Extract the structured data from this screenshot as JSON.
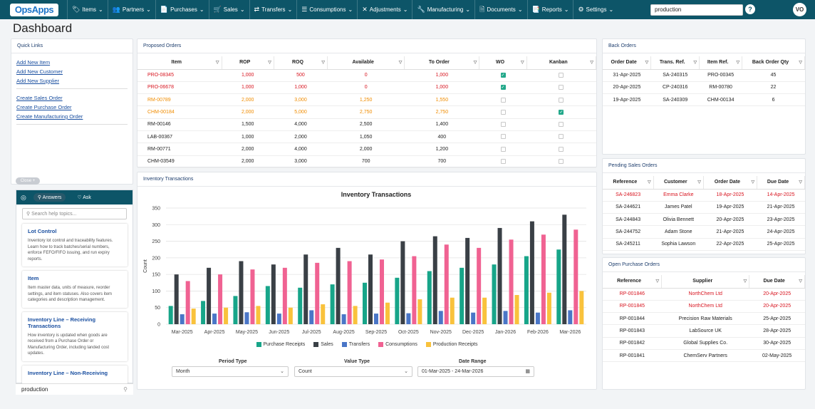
{
  "nav": {
    "logo": "OpsApps",
    "items": [
      {
        "label": "Items",
        "icon": "tag-icon"
      },
      {
        "label": "Partners",
        "icon": "people-icon"
      },
      {
        "label": "Purchases",
        "icon": "document-icon"
      },
      {
        "label": "Sales",
        "icon": "cart-icon"
      },
      {
        "label": "Transfers",
        "icon": "transfer-icon"
      },
      {
        "label": "Consumptions",
        "icon": "list-icon"
      },
      {
        "label": "Adjustments",
        "icon": "cross-arrows-icon"
      },
      {
        "label": "Manufacturing",
        "icon": "wrench-icon"
      },
      {
        "label": "Documents",
        "icon": "file-icon"
      },
      {
        "label": "Reports",
        "icon": "report-icon"
      },
      {
        "label": "Settings",
        "icon": "gear-icon"
      }
    ],
    "search_value": "production",
    "help": "?",
    "avatar": "VO"
  },
  "page_title": "Dashboard",
  "quick_links": {
    "title": "Quick Links",
    "group1": [
      "Add New Item",
      "Add New Customer",
      "Add New Supplier"
    ],
    "group2": [
      "Create Sales Order",
      "Create Purchase Order",
      "Create Manufacturing Order"
    ]
  },
  "close_label": "Close",
  "help": {
    "tab_answers": "Answers",
    "tab_ask": "Ask",
    "search_placeholder": "Search help topics...",
    "cards": [
      {
        "title": "Lot Control",
        "desc": "Inventory lot control and traceability features. Learn how to track batches/serial numbers, enforce FEFO/FIFO issuing, and run expiry reports."
      },
      {
        "title": "Item",
        "desc": "Item master data, units of measure, reorder settings, and item statuses. Also covers item categories and description management."
      },
      {
        "title": "Inventory Line – Receiving Transactions",
        "desc": "How inventory is updated when goods are received from a Purchase Order or Manufacturing Order, including landed cost updates."
      },
      {
        "title": "Inventory Line – Non-Receiving",
        "desc": ""
      }
    ],
    "bottom_query": "production"
  },
  "proposed_orders": {
    "title": "Proposed Orders",
    "headers": [
      "Item",
      "ROP",
      "ROQ",
      "Available",
      "To Order",
      "WO",
      "Kanban"
    ],
    "rows": [
      {
        "item": "PRO-08345",
        "rop": "1,000",
        "roq": "500",
        "available": "0",
        "to_order": "1,000",
        "wo": true,
        "kanban": false,
        "color": "red"
      },
      {
        "item": "PRO-06678",
        "rop": "1,000",
        "roq": "1,000",
        "available": "0",
        "to_order": "1,000",
        "wo": true,
        "kanban": false,
        "color": "red"
      },
      {
        "item": "RM-00789",
        "rop": "2,000",
        "roq": "3,000",
        "available": "1,250",
        "to_order": "1,550",
        "wo": false,
        "kanban": false,
        "color": "orange"
      },
      {
        "item": "CHM-00184",
        "rop": "2,000",
        "roq": "5,000",
        "available": "2,750",
        "to_order": "2,750",
        "wo": false,
        "kanban": true,
        "color": "orange"
      },
      {
        "item": "RM-00146",
        "rop": "1,500",
        "roq": "4,000",
        "available": "2,500",
        "to_order": "1,400",
        "wo": false,
        "kanban": false,
        "color": ""
      },
      {
        "item": "LAB-00367",
        "rop": "1,000",
        "roq": "2,000",
        "available": "1,050",
        "to_order": "400",
        "wo": false,
        "kanban": false,
        "color": ""
      },
      {
        "item": "RM-00771",
        "rop": "2,000",
        "roq": "4,000",
        "available": "2,000",
        "to_order": "1,200",
        "wo": false,
        "kanban": false,
        "color": ""
      },
      {
        "item": "CHM-03549",
        "rop": "2,000",
        "roq": "3,000",
        "available": "700",
        "to_order": "700",
        "wo": false,
        "kanban": false,
        "color": ""
      }
    ]
  },
  "back_orders": {
    "title": "Back Orders",
    "headers": [
      "Order Date",
      "Trans. Ref.",
      "Item Ref.",
      "Back Order Qty"
    ],
    "rows": [
      [
        "31-Apr-2025",
        "SA-240315",
        "PRO-00345",
        "45"
      ],
      [
        "20-Apr-2025",
        "CP-240316",
        "RM-00780",
        "22"
      ],
      [
        "19-Apr-2025",
        "SA-240309",
        "CHM-00134",
        "6"
      ]
    ]
  },
  "pending_sales": {
    "title": "Pending Sales Orders",
    "headers": [
      "Reference",
      "Customer",
      "Order Date",
      "Due Date"
    ],
    "rows": [
      {
        "cells": [
          "SA-246823",
          "Emma Clarke",
          "18-Apr-2025",
          "14-Apr-2025"
        ],
        "color": "red"
      },
      {
        "cells": [
          "SA-244621",
          "James Patel",
          "19-Apr-2025",
          "21-Apr-2025"
        ],
        "color": ""
      },
      {
        "cells": [
          "SA-244843",
          "Olivia Bennett",
          "20-Apr-2025",
          "23-Apr-2025"
        ],
        "color": ""
      },
      {
        "cells": [
          "SA-244752",
          "Adam Stone",
          "21-Apr-2025",
          "24-Apr-2025"
        ],
        "color": ""
      },
      {
        "cells": [
          "SA-245211",
          "Sophia Lawson",
          "22-Apr-2025",
          "25-Apr-2025"
        ],
        "color": ""
      }
    ]
  },
  "open_purchase": {
    "title": "Open Purchase Orders",
    "headers": [
      "Reference",
      "Supplier",
      "Due Date"
    ],
    "rows": [
      {
        "cells": [
          "RP-001846",
          "NorthChem Ltd",
          "20-Apr-2025"
        ],
        "color": "red"
      },
      {
        "cells": [
          "RP-001845",
          "NorthChem Ltd",
          "20-Apr-2025"
        ],
        "color": "red"
      },
      {
        "cells": [
          "RP-001844",
          "Precision Raw Materials",
          "25-Apr-2025"
        ],
        "color": ""
      },
      {
        "cells": [
          "RP-001843",
          "LabSource UK",
          "28-Apr-2025"
        ],
        "color": ""
      },
      {
        "cells": [
          "RP-001842",
          "Global Supplies Co.",
          "30-Apr-2025"
        ],
        "color": ""
      },
      {
        "cells": [
          "RP-001841",
          "ChemServ Partners",
          "02-May-2025"
        ],
        "color": ""
      }
    ]
  },
  "inventory_panel": {
    "title": "Inventory Transactions",
    "filters": {
      "period_label": "Period Type",
      "period_value": "Month",
      "value_label": "Value Type",
      "value_value": "Count",
      "date_label": "Date Range",
      "date_value": "01-Mar-2025 - 24-Mar-2026"
    }
  },
  "chart_data": {
    "type": "bar",
    "title": "Inventory Transactions",
    "xlabel": "",
    "ylabel": "Count",
    "ylim": [
      0,
      350
    ],
    "yticks": [
      0,
      50,
      100,
      150,
      200,
      250,
      300,
      350
    ],
    "grid": true,
    "legend": "bottom",
    "categories": [
      "Mar-2025",
      "Apr-2025",
      "May-2025",
      "Jun-2025",
      "Jul-2025",
      "Aug-2025",
      "Sep-2025",
      "Oct-2025",
      "Nov-2025",
      "Dec-2025",
      "Jan-2026",
      "Feb-2026",
      "Mar-2026"
    ],
    "series": [
      {
        "name": "Purchase Receipts",
        "color": "#17a589",
        "values": [
          55,
          70,
          85,
          115,
          110,
          120,
          125,
          140,
          160,
          170,
          180,
          205,
          225
        ]
      },
      {
        "name": "Sales",
        "color": "#3a4046",
        "values": [
          150,
          170,
          190,
          180,
          210,
          230,
          210,
          250,
          265,
          260,
          290,
          310,
          330
        ]
      },
      {
        "name": "Transfers",
        "color": "#4a76c7",
        "values": [
          30,
          32,
          36,
          32,
          42,
          30,
          32,
          33,
          40,
          35,
          40,
          35,
          42
        ]
      },
      {
        "name": "Consumptions",
        "color": "#f06292",
        "values": [
          130,
          150,
          165,
          170,
          185,
          190,
          195,
          205,
          240,
          230,
          255,
          270,
          285
        ]
      },
      {
        "name": "Production Receipts",
        "color": "#f9c23c",
        "values": [
          47,
          50,
          55,
          50,
          60,
          55,
          65,
          75,
          80,
          80,
          88,
          95,
          100
        ]
      }
    ]
  }
}
